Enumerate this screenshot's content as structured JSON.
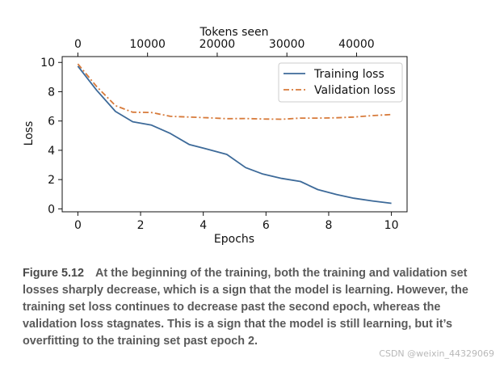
{
  "chart_data": {
    "type": "line",
    "xlabel": "Epochs",
    "ylabel": "Loss",
    "x2label": "Tokens seen",
    "xlim": [
      -0.5,
      10.5
    ],
    "ylim": [
      -0.2,
      10.4
    ],
    "x2lim": [
      -2250,
      47250
    ],
    "xticks": [
      0,
      2,
      4,
      6,
      8,
      10
    ],
    "yticks": [
      0,
      2,
      4,
      6,
      8,
      10
    ],
    "x2ticks": [
      0,
      10000,
      20000,
      30000,
      40000
    ],
    "legend_position": "top-right",
    "grid": false,
    "series": [
      {
        "name": "Training loss",
        "color": "#3d6a99",
        "style": "solid",
        "x": [
          0,
          0.6,
          1.2,
          1.75,
          2.35,
          2.95,
          3.55,
          4.15,
          4.75,
          5.35,
          5.9,
          6.5,
          7.1,
          7.65,
          8.25,
          8.8,
          9.4,
          10
        ],
        "y": [
          9.75,
          8.1,
          6.65,
          5.95,
          5.72,
          5.15,
          4.4,
          4.07,
          3.72,
          2.82,
          2.38,
          2.08,
          1.87,
          1.32,
          0.98,
          0.73,
          0.54,
          0.38
        ]
      },
      {
        "name": "Validation loss",
        "color": "#d77a3a",
        "style": "dashdot",
        "x": [
          0,
          0.6,
          1.2,
          1.75,
          2.35,
          2.95,
          3.55,
          4.15,
          4.75,
          5.35,
          5.9,
          6.5,
          7.1,
          7.65,
          8.25,
          8.8,
          9.4,
          10
        ],
        "y": [
          9.9,
          8.35,
          7.05,
          6.6,
          6.58,
          6.32,
          6.27,
          6.22,
          6.16,
          6.17,
          6.14,
          6.12,
          6.2,
          6.2,
          6.22,
          6.27,
          6.37,
          6.44
        ]
      }
    ]
  },
  "caption": {
    "label": "Figure 5.12",
    "text": "At the beginning of the training, both the training and validation set losses sharply decrease, which is a sign that the model is learning. However, the training set loss continues to decrease past the second epoch, whereas the validation loss stagnates. This is a sign that the model is still learning, but it’s overfitting to the training set past epoch 2."
  },
  "watermark": "CSDN @weixin_44329069"
}
